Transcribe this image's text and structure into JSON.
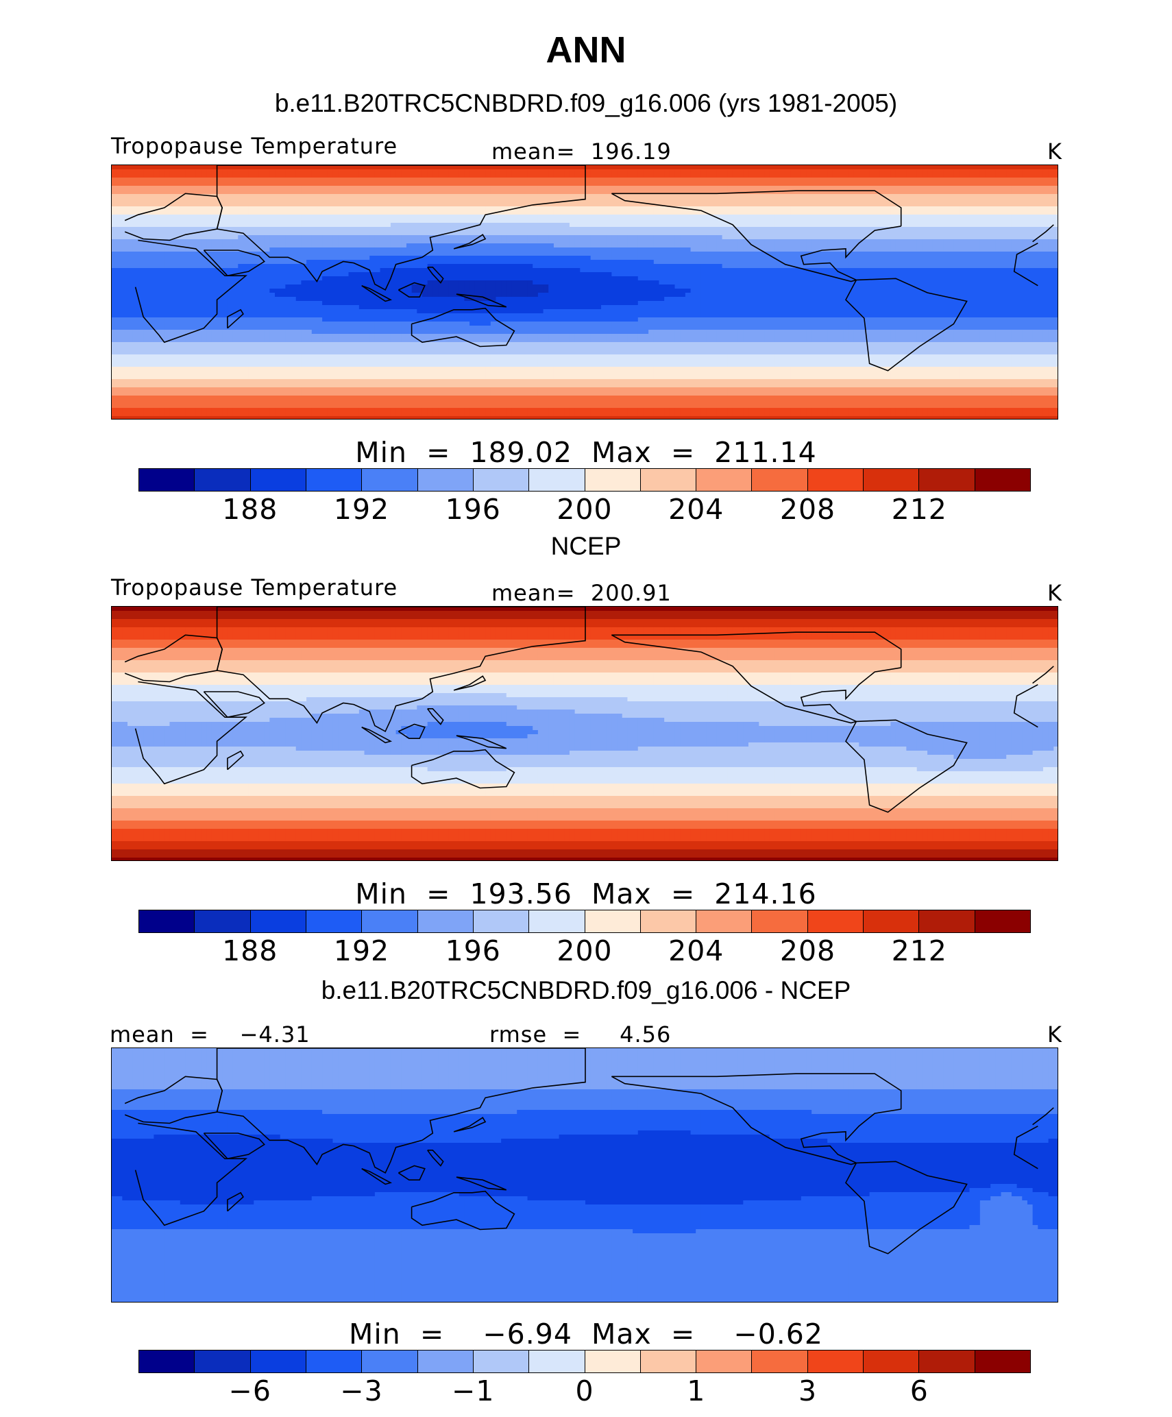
{
  "title": "ANN",
  "colorbar_colors": [
    "#00008b",
    "#0a2dbd",
    "#0a3ee0",
    "#1e5cf5",
    "#4a80f7",
    "#7fa4f7",
    "#b0c8f8",
    "#d8e6fb",
    "#feebd8",
    "#fcc8a8",
    "#fb9e78",
    "#f66c3e",
    "#f0451a",
    "#d8300c",
    "#b01c08",
    "#8b0000"
  ],
  "panels": [
    {
      "title": "b.e11.B20TRC5CNBDRD.f09_g16.006 (yrs 1981-2005)",
      "left_label": "Tropopause Temperature",
      "center_label": "mean=  196.19",
      "units": "K",
      "minmax": "Min  =  189.02  Max  =  211.14",
      "ticks": [
        "188",
        "192",
        "196",
        "200",
        "204",
        "208",
        "212"
      ],
      "field": "model"
    },
    {
      "title": "NCEP",
      "left_label": "Tropopause Temperature",
      "center_label": "mean=  200.91",
      "units": "K",
      "minmax": "Min  =  193.56  Max  =  214.16",
      "ticks": [
        "188",
        "192",
        "196",
        "200",
        "204",
        "208",
        "212"
      ],
      "field": "obs"
    },
    {
      "title": "b.e11.B20TRC5CNBDRD.f09_g16.006 - NCEP",
      "left_label": "mean  =    −4.31",
      "center_label": "rmse  =     4.56",
      "units": "K",
      "minmax": "Min  =    −6.94  Max  =    −0.62",
      "ticks": [
        "−6",
        "−3",
        "−1",
        "0",
        "1",
        "3",
        "6"
      ],
      "field": "diff"
    }
  ]
}
